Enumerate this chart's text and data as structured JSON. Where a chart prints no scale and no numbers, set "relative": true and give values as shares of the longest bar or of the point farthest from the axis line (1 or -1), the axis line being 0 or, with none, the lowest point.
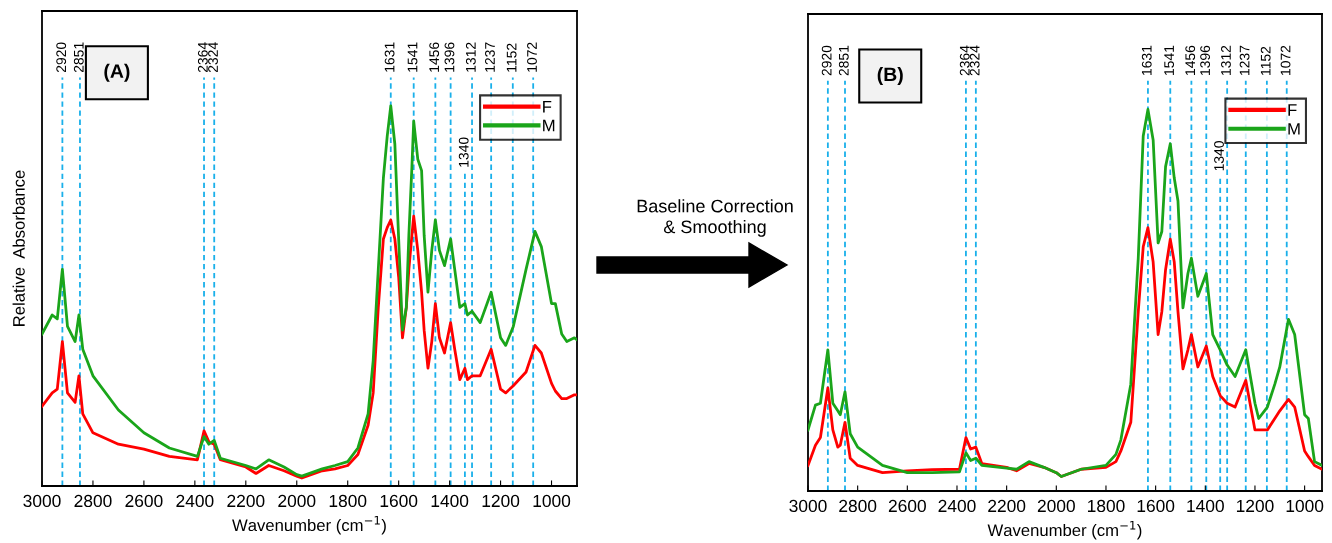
{
  "chart_data": [
    {
      "type": "line",
      "xlabel": "Wavenumber (cm$^{−1}$)",
      "ylabel": "Relative  Absorbance",
      "relative": true,
      "legend": "top right",
      "grid": false,
      "annotations": [
        "(A)",
        "Baseline Correction\n& Smoothing"
      ],
      "xlim": [
        3000,
        900
      ],
      "xticks": [
        3000,
        2800,
        2600,
        2400,
        2200,
        2000,
        1800,
        1600,
        1400,
        1200,
        1000
      ],
      "x": [
        3000,
        2960,
        2940,
        2920,
        2900,
        2870,
        2855,
        2840,
        2800,
        2700,
        2600,
        2500,
        2390,
        2364,
        2345,
        2324,
        2300,
        2200,
        2160,
        2110,
        2050,
        2000,
        1980,
        1900,
        1850,
        1800,
        1760,
        1720,
        1700,
        1680,
        1660,
        1645,
        1631,
        1615,
        1600,
        1585,
        1570,
        1560,
        1548,
        1541,
        1525,
        1510,
        1500,
        1485,
        1470,
        1456,
        1440,
        1420,
        1396,
        1380,
        1360,
        1340,
        1330,
        1312,
        1280,
        1237,
        1200,
        1180,
        1150,
        1100,
        1065,
        1040,
        1000,
        985,
        960,
        940,
        910,
        900
      ],
      "series": [
        {
          "name": "F",
          "color": "#ff0000",
          "values": [
            0.21,
            0.245,
            0.255,
            0.38,
            0.245,
            0.22,
            0.29,
            0.19,
            0.14,
            0.11,
            0.097,
            0.078,
            0.069,
            0.145,
            0.116,
            0.11,
            0.069,
            0.05,
            0.033,
            0.054,
            0.04,
            0.026,
            0.021,
            0.04,
            0.045,
            0.054,
            0.083,
            0.16,
            0.245,
            0.47,
            0.65,
            0.68,
            0.7,
            0.65,
            0.55,
            0.39,
            0.47,
            0.57,
            0.66,
            0.71,
            0.62,
            0.51,
            0.41,
            0.31,
            0.38,
            0.48,
            0.39,
            0.35,
            0.43,
            0.36,
            0.28,
            0.31,
            0.28,
            0.29,
            0.29,
            0.36,
            0.255,
            0.245,
            0.264,
            0.3,
            0.37,
            0.35,
            0.27,
            0.25,
            0.23,
            0.23,
            0.24,
            0.24
          ]
        },
        {
          "name": "M",
          "color": "#1aa51a",
          "values": [
            0.4,
            0.45,
            0.44,
            0.57,
            0.42,
            0.38,
            0.45,
            0.36,
            0.29,
            0.2,
            0.14,
            0.1,
            0.078,
            0.13,
            0.11,
            0.12,
            0.073,
            0.054,
            0.045,
            0.069,
            0.05,
            0.03,
            0.026,
            0.045,
            0.054,
            0.064,
            0.1,
            0.19,
            0.33,
            0.57,
            0.81,
            0.92,
            1.0,
            0.9,
            0.65,
            0.41,
            0.47,
            0.66,
            0.84,
            0.96,
            0.86,
            0.83,
            0.66,
            0.51,
            0.62,
            0.7,
            0.62,
            0.58,
            0.65,
            0.57,
            0.47,
            0.48,
            0.45,
            0.46,
            0.43,
            0.51,
            0.39,
            0.37,
            0.42,
            0.57,
            0.67,
            0.63,
            0.48,
            0.48,
            0.4,
            0.38,
            0.39,
            0.385
          ]
        }
      ],
      "ref_lines": [
        {
          "axis": "x",
          "value": 2920,
          "label": "2920",
          "color": "#1ab0ea",
          "line_style": "dashed"
        },
        {
          "axis": "x",
          "value": 2851,
          "label": "2851",
          "color": "#1ab0ea",
          "line_style": "dashed"
        },
        {
          "axis": "x",
          "value": 2364,
          "label": "2364",
          "color": "#1ab0ea",
          "line_style": "dashed"
        },
        {
          "axis": "x",
          "value": 2324,
          "label": "2324",
          "color": "#1ab0ea",
          "line_style": "dashed"
        },
        {
          "axis": "x",
          "value": 1631,
          "label": "1631",
          "color": "#1ab0ea",
          "line_style": "dashed"
        },
        {
          "axis": "x",
          "value": 1541,
          "label": "1541",
          "color": "#1ab0ea",
          "line_style": "dashed"
        },
        {
          "axis": "x",
          "value": 1456,
          "label": "1456",
          "color": "#1ab0ea",
          "line_style": "dashed"
        },
        {
          "axis": "x",
          "value": 1396,
          "label": "1396",
          "color": "#1ab0ea",
          "line_style": "dashed"
        },
        {
          "axis": "x",
          "value": 1340,
          "label": "1340",
          "color": "#1ab0ea",
          "line_style": "dashed"
        },
        {
          "axis": "x",
          "value": 1312,
          "label": "1312",
          "color": "#1ab0ea",
          "line_style": "dashed"
        },
        {
          "axis": "x",
          "value": 1237,
          "label": "1237",
          "color": "#1ab0ea",
          "line_style": "dashed"
        },
        {
          "axis": "x",
          "value": 1152,
          "label": "1152",
          "color": "#1ab0ea",
          "line_style": "dashed"
        },
        {
          "axis": "x",
          "value": 1072,
          "label": "1072",
          "color": "#1ab0ea",
          "line_style": "dashed"
        }
      ]
    },
    {
      "type": "line",
      "xlabel": "Wavenumber (cm$^{−1}$)",
      "relative": true,
      "legend": "top right",
      "grid": false,
      "annotations": [
        "(B)"
      ],
      "xlim": [
        3000,
        930
      ],
      "xticks": [
        3000,
        2800,
        2600,
        2400,
        2200,
        2000,
        1800,
        1600,
        1400,
        1200,
        1000
      ],
      "x": [
        3000,
        2970,
        2950,
        2920,
        2900,
        2880,
        2870,
        2851,
        2830,
        2800,
        2700,
        2600,
        2500,
        2390,
        2364,
        2345,
        2324,
        2300,
        2200,
        2160,
        2110,
        2050,
        2000,
        1980,
        1900,
        1800,
        1760,
        1740,
        1700,
        1670,
        1650,
        1631,
        1610,
        1590,
        1575,
        1560,
        1541,
        1525,
        1510,
        1490,
        1470,
        1456,
        1430,
        1396,
        1370,
        1340,
        1312,
        1280,
        1237,
        1200,
        1185,
        1150,
        1120,
        1100,
        1065,
        1040,
        1000,
        985,
        960,
        930
      ],
      "series": [
        {
          "name": "F",
          "color": "#ff0000",
          "values": [
            0.067,
            0.12,
            0.14,
            0.27,
            0.16,
            0.115,
            0.12,
            0.18,
            0.086,
            0.067,
            0.048,
            0.053,
            0.056,
            0.057,
            0.14,
            0.11,
            0.115,
            0.072,
            0.062,
            0.053,
            0.072,
            0.062,
            0.048,
            0.038,
            0.057,
            0.062,
            0.077,
            0.105,
            0.18,
            0.47,
            0.64,
            0.69,
            0.6,
            0.41,
            0.47,
            0.58,
            0.66,
            0.6,
            0.47,
            0.32,
            0.37,
            0.41,
            0.325,
            0.38,
            0.3,
            0.25,
            0.23,
            0.22,
            0.29,
            0.16,
            0.16,
            0.16,
            0.19,
            0.21,
            0.24,
            0.22,
            0.105,
            0.09,
            0.067,
            0.057
          ]
        },
        {
          "name": "M",
          "color": "#1aa51a",
          "values": [
            0.16,
            0.225,
            0.23,
            0.37,
            0.23,
            0.21,
            0.2,
            0.26,
            0.15,
            0.115,
            0.067,
            0.048,
            0.048,
            0.05,
            0.1,
            0.08,
            0.086,
            0.067,
            0.06,
            0.057,
            0.077,
            0.062,
            0.048,
            0.038,
            0.057,
            0.067,
            0.096,
            0.134,
            0.28,
            0.61,
            0.93,
            1.0,
            0.92,
            0.65,
            0.68,
            0.85,
            0.91,
            0.82,
            0.76,
            0.48,
            0.57,
            0.61,
            0.51,
            0.57,
            0.41,
            0.37,
            0.33,
            0.3,
            0.37,
            0.23,
            0.19,
            0.22,
            0.28,
            0.325,
            0.45,
            0.41,
            0.2,
            0.19,
            0.077,
            0.067
          ]
        }
      ],
      "ref_lines": [
        {
          "axis": "x",
          "value": 2920,
          "label": "2920",
          "color": "#1ab0ea",
          "line_style": "dashed"
        },
        {
          "axis": "x",
          "value": 2851,
          "label": "2851",
          "color": "#1ab0ea",
          "line_style": "dashed"
        },
        {
          "axis": "x",
          "value": 2364,
          "label": "2364",
          "color": "#1ab0ea",
          "line_style": "dashed"
        },
        {
          "axis": "x",
          "value": 2324,
          "label": "2324",
          "color": "#1ab0ea",
          "line_style": "dashed"
        },
        {
          "axis": "x",
          "value": 1631,
          "label": "1631",
          "color": "#1ab0ea",
          "line_style": "dashed"
        },
        {
          "axis": "x",
          "value": 1541,
          "label": "1541",
          "color": "#1ab0ea",
          "line_style": "dashed"
        },
        {
          "axis": "x",
          "value": 1456,
          "label": "1456",
          "color": "#1ab0ea",
          "line_style": "dashed"
        },
        {
          "axis": "x",
          "value": 1396,
          "label": "1396",
          "color": "#1ab0ea",
          "line_style": "dashed"
        },
        {
          "axis": "x",
          "value": 1340,
          "label": "1340",
          "color": "#1ab0ea",
          "line_style": "dashed"
        },
        {
          "axis": "x",
          "value": 1312,
          "label": "1312",
          "color": "#1ab0ea",
          "line_style": "dashed"
        },
        {
          "axis": "x",
          "value": 1237,
          "label": "1237",
          "color": "#1ab0ea",
          "line_style": "dashed"
        },
        {
          "axis": "x",
          "value": 1152,
          "label": "1152",
          "color": "#1ab0ea",
          "line_style": "dashed"
        },
        {
          "axis": "x",
          "value": 1072,
          "label": "1072",
          "color": "#1ab0ea",
          "line_style": "dashed"
        }
      ]
    }
  ]
}
